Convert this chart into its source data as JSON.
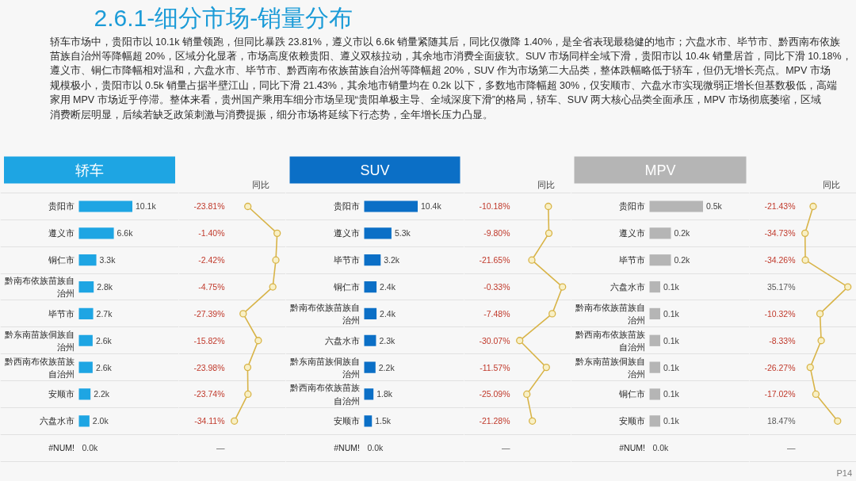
{
  "chart_data": [
    {
      "type": "other",
      "title": "2.6.1-细分市场-销量分布",
      "annotations": [
        "轿车市场中，贵阳市以 10.1k 销量领跑，但同比暴跌 23.81%，遵义市以 6.6k 销量紧随其后，同比仅微降 1.40%，是全省表现最稳健的地市；六盘水市、毕节市、黔西南布依族苗族自治州等降幅超 20%，区域分化显著，市场高度依赖贵阳、遵义双核拉动，其余地市消费全面疲软。SUV 市场同样全域下滑，贵阳市以 10.4k 销量居首，同比下滑 10.18%，遵义市、铜仁市降幅相对温和，六盘水市、毕节市、黔西南布依族苗族自治州等降幅超 20%，SUV 作为市场第二大品类，整体跌幅略低于轿车，但仍无增长亮点。MPV 市场规模极小，贵阳市以 0.5k 销量占据半壁江山，同比下滑 21.43%，其余地市销量均在 0.2k 以下，多数地市降幅超 30%，仅安顺市、六盘水市实现微弱正增长但基数极低，高端家用 MPV 市场近乎停滞。整体来看，贵州国产乘用车细分市场呈现“贵阳单极主导、全域深度下滑”的格局，轿车、SUV 两大核心品类全面承压，MPV 市场彻底萎缩，区域消费断层明显，后续若缺乏政策刺激与消费提振，细分市场将延续下行态势，全年增长压力凸显。"
      ]
    },
    {
      "type": "bar",
      "orientation": "horizontal",
      "title": "轿车",
      "grid": "y",
      "tick_labels": "y",
      "categories": [
        "贵阳市",
        "遵义市",
        "铜仁市",
        "黔南布依族苗族自治州",
        "毕节市",
        "黔东南苗族侗族自治州",
        "黔西南布依族苗族自治州",
        "安顺市",
        "六盘水市",
        "#NUM!"
      ],
      "color": "#1ea5e3",
      "values": [
        10.1,
        6.6,
        3.3,
        2.8,
        2.7,
        2.6,
        2.6,
        2.2,
        2.0,
        0.0
      ],
      "value_labels": [
        "10.1k",
        "6.6k",
        "3.3k",
        "2.8k",
        "2.7k",
        "2.6k",
        "2.6k",
        "2.2k",
        "2.0k",
        "0.0k"
      ]
    },
    {
      "type": "line",
      "orientation": "horizontal",
      "title": "同比",
      "grid": "y",
      "tick_labels": false,
      "marker": "circle",
      "categories": [
        "贵阳市",
        "遵义市",
        "铜仁市",
        "黔南布依族苗族自治州",
        "毕节市",
        "黔东南苗族侗族自治州",
        "黔西南布依族苗族自治州",
        "安顺市",
        "六盘水市",
        "#NUM!"
      ],
      "color": "#d8b448",
      "values": [
        -23.81,
        -1.4,
        -2.42,
        -4.75,
        -27.39,
        -15.82,
        -23.98,
        -23.74,
        -34.11,
        null
      ],
      "value_labels": [
        "-23.81%",
        "-1.40%",
        "-2.42%",
        "-4.75%",
        "-27.39%",
        "-15.82%",
        "-23.98%",
        "-23.74%",
        "-34.11%",
        "—"
      ]
    },
    {
      "type": "bar",
      "orientation": "horizontal",
      "title": "SUV",
      "grid": "y",
      "tick_labels": "y",
      "categories": [
        "贵阳市",
        "遵义市",
        "毕节市",
        "铜仁市",
        "黔南布依族苗族自治州",
        "六盘水市",
        "黔东南苗族侗族自治州",
        "黔西南布依族苗族自治州",
        "安顺市",
        "#NUM!"
      ],
      "color": "#0b6fc6",
      "values": [
        10.4,
        5.3,
        3.2,
        2.4,
        2.4,
        2.3,
        2.2,
        1.8,
        1.5,
        0.0
      ],
      "value_labels": [
        "10.4k",
        "5.3k",
        "3.2k",
        "2.4k",
        "2.4k",
        "2.3k",
        "2.2k",
        "1.8k",
        "1.5k",
        "0.0k"
      ]
    },
    {
      "type": "line",
      "orientation": "horizontal",
      "title": "同比",
      "grid": "y",
      "tick_labels": false,
      "marker": "circle",
      "categories": [
        "贵阳市",
        "遵义市",
        "毕节市",
        "铜仁市",
        "黔南布依族苗族自治州",
        "六盘水市",
        "黔东南苗族侗族自治州",
        "黔西南布依族苗族自治州",
        "安顺市",
        "#NUM!"
      ],
      "color": "#d8b448",
      "values": [
        -10.18,
        -9.8,
        -21.65,
        -0.33,
        -7.48,
        -30.07,
        -11.57,
        -25.09,
        -21.28,
        null
      ],
      "value_labels": [
        "-10.18%",
        "-9.80%",
        "-21.65%",
        "-0.33%",
        "-7.48%",
        "-30.07%",
        "-11.57%",
        "-25.09%",
        "-21.28%",
        "—"
      ]
    },
    {
      "type": "bar",
      "orientation": "horizontal",
      "title": "MPV",
      "grid": "y",
      "tick_labels": "y",
      "categories": [
        "贵阳市",
        "遵义市",
        "毕节市",
        "六盘水市",
        "黔南布依族苗族自治州",
        "黔西南布依族苗族自治州",
        "黔东南苗族侗族自治州",
        "铜仁市",
        "安顺市",
        "#NUM!"
      ],
      "color": "#b5b5b5",
      "values": [
        0.5,
        0.2,
        0.2,
        0.1,
        0.1,
        0.1,
        0.1,
        0.1,
        0.1,
        0.0
      ],
      "value_labels": [
        "0.5k",
        "0.2k",
        "0.2k",
        "0.1k",
        "0.1k",
        "0.1k",
        "0.1k",
        "0.1k",
        "0.1k",
        "0.0k"
      ]
    },
    {
      "type": "line",
      "orientation": "horizontal",
      "title": "同比",
      "grid": "y",
      "tick_labels": false,
      "marker": "circle",
      "annotations": [
        "P14"
      ],
      "categories": [
        "贵阳市",
        "遵义市",
        "毕节市",
        "六盘水市",
        "黔南布依族苗族自治州",
        "黔西南布依族苗族自治州",
        "黔东南苗族侗族自治州",
        "铜仁市",
        "安顺市",
        "#NUM!"
      ],
      "color": "#d8b448",
      "values": [
        -21.43,
        -34.73,
        -34.26,
        35.17,
        -10.32,
        -8.33,
        -26.27,
        -17.02,
        18.47,
        null
      ],
      "value_labels": [
        "-21.43%",
        "-34.73%",
        "-34.26%",
        "35.17%",
        "-10.32%",
        "-8.33%",
        "-26.27%",
        "-17.02%",
        "18.47%",
        "—"
      ]
    }
  ]
}
